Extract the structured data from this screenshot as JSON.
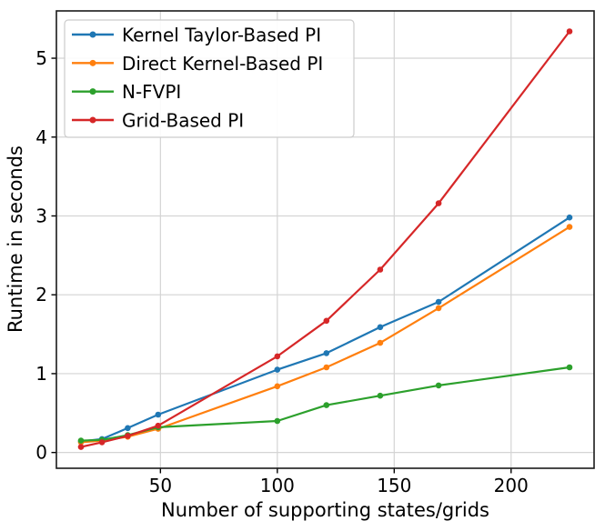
{
  "figure": {
    "background": "#ffffff"
  },
  "chart_data": {
    "type": "line",
    "title": "",
    "xlabel": "Number of supporting states/grids",
    "ylabel": "Runtime in seconds",
    "x": [
      16,
      25,
      36,
      49,
      100,
      121,
      144,
      169,
      225
    ],
    "series": [
      {
        "name": "Kernel Taylor-Based PI",
        "color": "#1f77b4",
        "values": [
          0.14,
          0.17,
          0.31,
          0.48,
          1.05,
          1.26,
          1.59,
          1.91,
          2.98
        ]
      },
      {
        "name": "Direct Kernel-Based PI",
        "color": "#ff7f0e",
        "values": [
          0.13,
          0.15,
          0.2,
          0.3,
          0.84,
          1.08,
          1.39,
          1.83,
          2.86
        ]
      },
      {
        "name": "N-FVPI",
        "color": "#2ca02c",
        "values": [
          0.15,
          0.16,
          0.22,
          0.32,
          0.4,
          0.6,
          0.72,
          0.85,
          1.08
        ]
      },
      {
        "name": "Grid-Based PI",
        "color": "#d62728",
        "values": [
          0.07,
          0.13,
          0.21,
          0.34,
          1.22,
          1.67,
          2.32,
          3.16,
          5.34
        ]
      }
    ],
    "xticks": [
      50,
      100,
      150,
      200
    ],
    "yticks": [
      0,
      1,
      2,
      3,
      4,
      5
    ],
    "xlim": [
      5.5,
      235.5
    ],
    "ylim": [
      -0.2,
      5.6
    ],
    "grid": true,
    "legend_position": "upper left",
    "colors": {
      "grid": "#d4d4d4",
      "spine": "#1a1a1a",
      "tick": "#000000",
      "legend_border": "#cccccc",
      "legend_background": "#ffffff"
    }
  }
}
